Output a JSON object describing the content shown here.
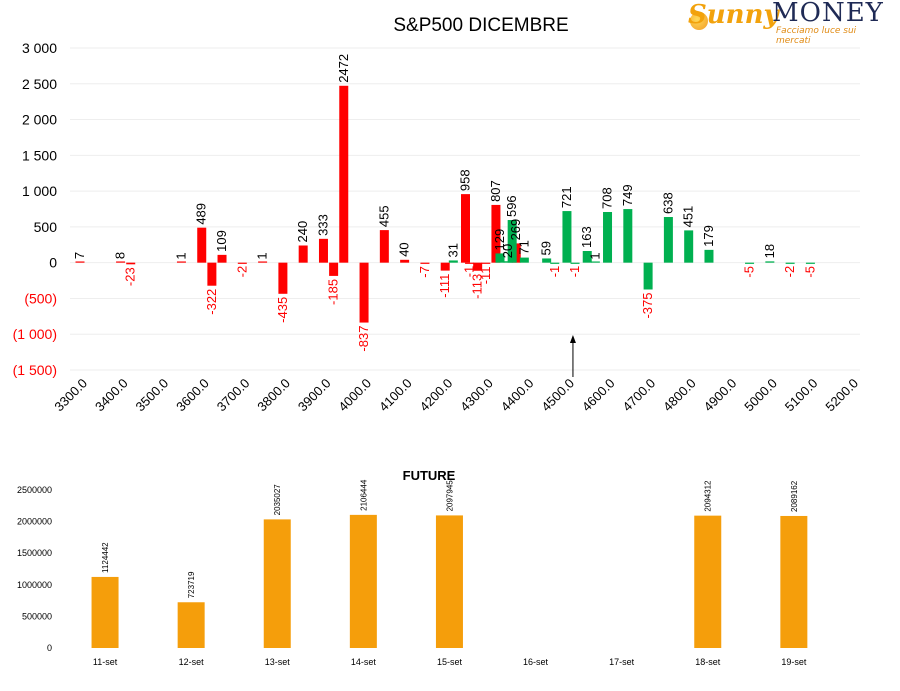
{
  "logo": {
    "word1": "Sunny",
    "word2": "MONEY",
    "tagline": "Facciamo luce sui mercati"
  },
  "colors": {
    "positive": "#00b050",
    "negative": "#ff0000",
    "future_bar": "#f59e0b",
    "text": "#000000",
    "negative_text": "#ff0000"
  },
  "chart_data": [
    {
      "type": "bar",
      "title": "S&P500 DICEMBRE",
      "xlabel": "",
      "ylabel": "",
      "ylim": [
        -1500,
        3000
      ],
      "yticks": [
        {
          "value": 3000,
          "label": "3 000"
        },
        {
          "value": 2500,
          "label": "2 500"
        },
        {
          "value": 2000,
          "label": "2 000"
        },
        {
          "value": 1500,
          "label": "1 500"
        },
        {
          "value": 1000,
          "label": "1 000"
        },
        {
          "value": 500,
          "label": "500"
        },
        {
          "value": 0,
          "label": "0"
        },
        {
          "value": -500,
          "label": "(500)"
        },
        {
          "value": -1000,
          "label": "(1 000)"
        },
        {
          "value": -1500,
          "label": "(1 500)"
        }
      ],
      "xticks": [
        "3300.0",
        "3400.0",
        "3500.0",
        "3600.0",
        "3700.0",
        "3800.0",
        "3900.0",
        "4000.0",
        "4100.0",
        "4200.0",
        "4300.0",
        "4400.0",
        "4500.0",
        "4600.0",
        "4700.0",
        "4800.0",
        "4900.0",
        "5000.0",
        "5100.0",
        "5200.0"
      ],
      "x_range": [
        3300,
        5200
      ],
      "marker_x": 4500,
      "series": [
        {
          "color": "red",
          "points": [
            {
              "x": 3300,
              "y": 7
            },
            {
              "x": 3400,
              "y": 8
            },
            {
              "x": 3425,
              "y": -23
            },
            {
              "x": 3550,
              "y": 1
            },
            {
              "x": 3600,
              "y": 489
            },
            {
              "x": 3625,
              "y": -322
            },
            {
              "x": 3650,
              "y": 109
            },
            {
              "x": 3700,
              "y": -2
            },
            {
              "x": 3750,
              "y": 1
            },
            {
              "x": 3800,
              "y": -435
            },
            {
              "x": 3850,
              "y": 240
            },
            {
              "x": 3900,
              "y": 333
            },
            {
              "x": 3925,
              "y": -185
            },
            {
              "x": 3950,
              "y": 2472
            },
            {
              "x": 4000,
              "y": -837
            },
            {
              "x": 4050,
              "y": 455
            },
            {
              "x": 4100,
              "y": 40
            },
            {
              "x": 4150,
              "y": -7
            },
            {
              "x": 4200,
              "y": -111
            },
            {
              "x": 4250,
              "y": 958
            },
            {
              "x": 4260,
              "y": -1
            },
            {
              "x": 4280,
              "y": -113
            },
            {
              "x": 4300,
              "y": -11
            },
            {
              "x": 4325,
              "y": 807
            },
            {
              "x": 4375,
              "y": 269
            }
          ]
        },
        {
          "color": "green",
          "points": [
            {
              "x": 4220,
              "y": 31
            },
            {
              "x": 4335,
              "y": 129
            },
            {
              "x": 4355,
              "y": 20
            },
            {
              "x": 4365,
              "y": 596
            },
            {
              "x": 4395,
              "y": 71
            },
            {
              "x": 4450,
              "y": 59
            },
            {
              "x": 4470,
              "y": -1
            },
            {
              "x": 4500,
              "y": 721
            },
            {
              "x": 4520,
              "y": -1
            },
            {
              "x": 4550,
              "y": 163
            },
            {
              "x": 4570,
              "y": 1
            },
            {
              "x": 4600,
              "y": 708
            },
            {
              "x": 4650,
              "y": 749
            },
            {
              "x": 4700,
              "y": -375
            },
            {
              "x": 4750,
              "y": 638
            },
            {
              "x": 4800,
              "y": 451
            },
            {
              "x": 4850,
              "y": 179
            },
            {
              "x": 4950,
              "y": -5
            },
            {
              "x": 5000,
              "y": 18
            },
            {
              "x": 5050,
              "y": -2
            },
            {
              "x": 5100,
              "y": -5
            }
          ]
        }
      ]
    },
    {
      "type": "bar",
      "title": "FUTURE",
      "xlabel": "",
      "ylabel": "",
      "ylim": [
        0,
        2500000
      ],
      "yticks": [
        "0",
        "500000",
        "1000000",
        "1500000",
        "2000000",
        "2500000"
      ],
      "categories": [
        "11-set",
        "12-set",
        "13-set",
        "14-set",
        "15-set",
        "16-set",
        "17-set",
        "18-set",
        "19-set"
      ],
      "values": [
        1124442,
        723719,
        2035027,
        2106444,
        2097945,
        null,
        null,
        2094312,
        2089162
      ],
      "labels": [
        "1124442",
        "723719",
        "2035027",
        "2106444",
        "2097945",
        "",
        "",
        "2094312",
        "2089162"
      ]
    }
  ]
}
